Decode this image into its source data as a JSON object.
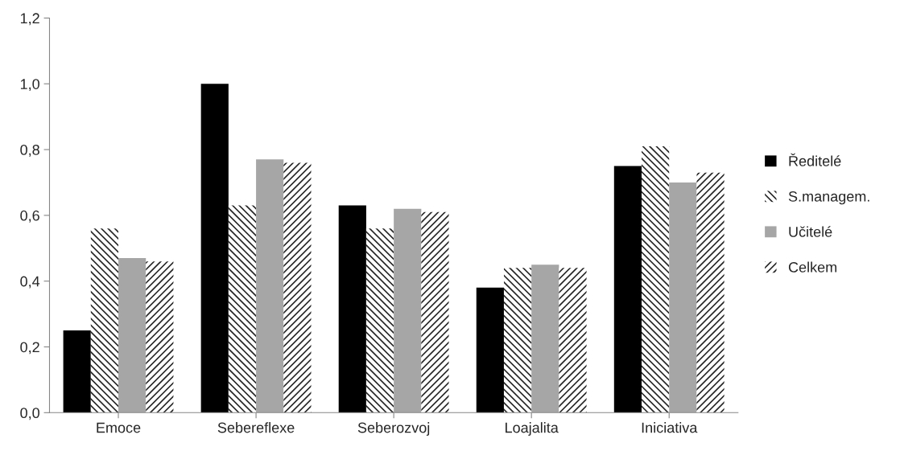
{
  "chart_data": {
    "type": "bar",
    "categories": [
      "Emoce",
      "Sebereflexe",
      "Seberozvoj",
      "Loajalita",
      "Iniciativa"
    ],
    "series": [
      {
        "name": "Ředitelé",
        "color": "#000000",
        "values": [
          0.25,
          1.0,
          0.63,
          0.38,
          0.75
        ]
      },
      {
        "name": "S.managem.",
        "color": "#262626",
        "values": [
          0.56,
          0.63,
          0.56,
          0.44,
          0.81
        ]
      },
      {
        "name": "Učitelé",
        "color": "#a6a6a6",
        "values": [
          0.47,
          0.77,
          0.62,
          0.45,
          0.7
        ]
      },
      {
        "name": "Celkem",
        "color": "#262626",
        "values": [
          0.46,
          0.76,
          0.61,
          0.44,
          0.73
        ]
      }
    ],
    "ylim": [
      0,
      1.2
    ],
    "yticks": [
      {
        "value": 0,
        "label": "0,0"
      },
      {
        "value": 0.2,
        "label": "0,2"
      },
      {
        "value": 0.4,
        "label": "0,4"
      },
      {
        "value": 0.6,
        "label": "0,6"
      },
      {
        "value": 0.8,
        "label": "0,8"
      },
      {
        "value": 1.0,
        "label": "1,0"
      },
      {
        "value": 1.2,
        "label": "1,2"
      }
    ],
    "grid": false,
    "legend": "right"
  }
}
